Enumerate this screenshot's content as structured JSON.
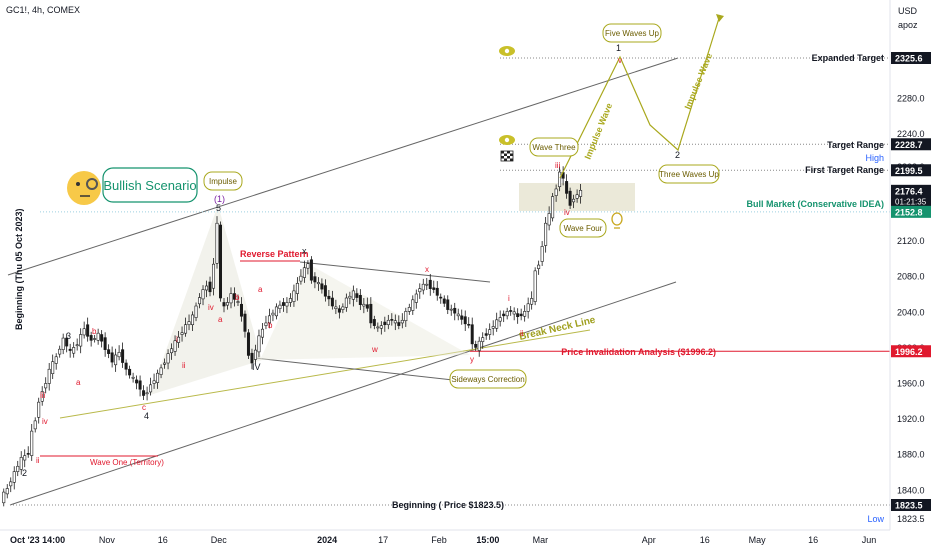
{
  "header": {
    "symbol": "GC1!, 4h, COMEX"
  },
  "currency": {
    "code": "USD",
    "user": "apoz"
  },
  "chart_data": {
    "type": "candlestick",
    "y_axis": {
      "range": [
        1800,
        2340
      ],
      "ticks": [
        1840,
        1880,
        1920,
        1960,
        2000,
        2040,
        2080,
        2120,
        2160,
        2200,
        2240,
        2280
      ]
    },
    "x_axis": {
      "labels": [
        {
          "text": "Oct '23  14:00",
          "x": 0
        },
        {
          "text": "Nov",
          "x": 30
        },
        {
          "text": "16",
          "x": 46
        },
        {
          "text": "Dec",
          "x": 62
        },
        {
          "text": "2024",
          "x": 93
        },
        {
          "text": "17",
          "x": 109
        },
        {
          "text": "Feb",
          "x": 125
        },
        {
          "text": "15:00",
          "x": 139
        },
        {
          "text": "Mar",
          "x": 154
        },
        {
          "text": "Apr",
          "x": 185
        },
        {
          "text": "16",
          "x": 201
        },
        {
          "text": "May",
          "x": 216
        },
        {
          "text": "16",
          "x": 232
        },
        {
          "text": "Jun",
          "x": 248
        }
      ],
      "range": [
        0,
        254
      ]
    },
    "price_path": [
      [
        0,
        1830
      ],
      [
        2,
        1842
      ],
      [
        4,
        1860
      ],
      [
        6,
        1875
      ],
      [
        8,
        1882
      ],
      [
        9,
        1905
      ],
      [
        10,
        1920
      ],
      [
        11,
        1940
      ],
      [
        13,
        1962
      ],
      [
        14,
        1975
      ],
      [
        16,
        1990
      ],
      [
        18,
        2010
      ],
      [
        20,
        1995
      ],
      [
        22,
        2005
      ],
      [
        24,
        2022
      ],
      [
        26,
        2008
      ],
      [
        28,
        2015
      ],
      [
        30,
        2000
      ],
      [
        32,
        1985
      ],
      [
        34,
        1995
      ],
      [
        36,
        1975
      ],
      [
        38,
        1965
      ],
      [
        40,
        1955
      ],
      [
        41,
        1945
      ],
      [
        43,
        1958
      ],
      [
        45,
        1970
      ],
      [
        47,
        1985
      ],
      [
        49,
        2000
      ],
      [
        51,
        2012
      ],
      [
        53,
        2025
      ],
      [
        55,
        2035
      ],
      [
        57,
        2058
      ],
      [
        59,
        2070
      ],
      [
        60,
        2065
      ],
      [
        61,
        2095
      ],
      [
        62,
        2140
      ],
      [
        63,
        2055
      ],
      [
        64,
        2045
      ],
      [
        66,
        2060
      ],
      [
        68,
        2050
      ],
      [
        70,
        2020
      ],
      [
        71,
        1990
      ],
      [
        72,
        1985
      ],
      [
        74,
        2012
      ],
      [
        76,
        2030
      ],
      [
        78,
        2040
      ],
      [
        80,
        2048
      ],
      [
        82,
        2050
      ],
      [
        84,
        2062
      ],
      [
        86,
        2082
      ],
      [
        88,
        2095
      ],
      [
        89,
        2078
      ],
      [
        91,
        2072
      ],
      [
        93,
        2060
      ],
      [
        95,
        2048
      ],
      [
        97,
        2040
      ],
      [
        99,
        2055
      ],
      [
        101,
        2062
      ],
      [
        103,
        2050
      ],
      [
        105,
        2045
      ],
      [
        106,
        2030
      ],
      [
        108,
        2022
      ],
      [
        110,
        2028
      ],
      [
        112,
        2032
      ],
      [
        114,
        2025
      ],
      [
        116,
        2040
      ],
      [
        118,
        2052
      ],
      [
        120,
        2068
      ],
      [
        122,
        2072
      ],
      [
        124,
        2065
      ],
      [
        126,
        2055
      ],
      [
        128,
        2045
      ],
      [
        130,
        2040
      ],
      [
        132,
        2032
      ],
      [
        134,
        2025
      ],
      [
        135,
        2005
      ],
      [
        136,
        2000
      ],
      [
        138,
        2012
      ],
      [
        140,
        2020
      ],
      [
        142,
        2030
      ],
      [
        144,
        2038
      ],
      [
        146,
        2042
      ],
      [
        148,
        2035
      ],
      [
        150,
        2040
      ],
      [
        151,
        2050
      ],
      [
        152,
        2055
      ],
      [
        153,
        2085
      ],
      [
        154,
        2095
      ],
      [
        155,
        2115
      ],
      [
        156,
        2140
      ],
      [
        157,
        2150
      ],
      [
        158,
        2168
      ],
      [
        159,
        2180
      ],
      [
        160,
        2198
      ],
      [
        161,
        2190
      ],
      [
        162,
        2172
      ],
      [
        163,
        2162
      ],
      [
        164,
        2168
      ],
      [
        165,
        2172
      ],
      [
        166,
        2176
      ]
    ],
    "levels": [
      {
        "name": "Expanded Target",
        "value": 2325.6,
        "label": "2325.6"
      },
      {
        "name": "Target Range",
        "value": 2228.7,
        "label": "2228.7"
      },
      {
        "name": "High",
        "value": 2203.0,
        "label": "2203.0"
      },
      {
        "name": "First Target Range",
        "value": 2199.5,
        "label": "2199.5"
      },
      {
        "name": "Current",
        "value": 2176.4,
        "label": "2176.4",
        "timer": "01:21:35"
      },
      {
        "name": "Bull Market (Conservative IDEA)",
        "value": 2152.8,
        "label": "2152.8"
      },
      {
        "name": "Price Invalidation Analysis ($1996.2)",
        "value": 1996.2,
        "label": "1996.2"
      },
      {
        "name": "Beginning ( Price $1823.5)",
        "value": 1823.5,
        "label": "1823.5"
      },
      {
        "name": "Low",
        "value": 1823.5,
        "label": "1823.5"
      }
    ]
  },
  "labels": {
    "y_axis_vertical": "Beginning (Thu 05 Oct 2023)",
    "expanded_target": "Expanded Target",
    "target_range": "Target Range",
    "high": "High",
    "first_target": "First Target Range",
    "bull_market": "Bull Market (Conservative IDEA)",
    "invalidation": "Price Invalidation Analysis ($1996.2)",
    "beginning": "Beginning ( Price $1823.5)",
    "low": "Low",
    "bullish_scenario": "Bullish Scenario",
    "impulse": "Impulse",
    "reverse_pattern": "Reverse Pattern",
    "break_neck": "Break Neck Line",
    "sideways": "Sideways Correction",
    "wave_one": "Wave One (Territory)",
    "wave_three": "Wave Three",
    "wave_four": "Wave Four",
    "five_waves_up": "Five Waves Up",
    "three_waves_up": "Three Waves Up",
    "impulse_wave": "Impulse Wave"
  },
  "waves": {
    "w1": "(1)",
    "w5": "5",
    "w3": "3",
    "w4": "4",
    "w2": "2",
    "wc": "c",
    "wiii": "iii",
    "wiv": "iv",
    "wii": "ii",
    "wi": "i",
    "wv": "v",
    "wa": "a",
    "wb": "b",
    "wx": "x",
    "wy": "y",
    "ww": "w",
    "wIV": "IV",
    "target1": "1",
    "target2": "2"
  },
  "colors": {
    "candle_up": "#1a1a1a",
    "candle_down": "#1a1a1a",
    "wave_red": "#e0192e",
    "olive": "#a9a81d",
    "green": "#15936e",
    "channel": "#555555"
  }
}
